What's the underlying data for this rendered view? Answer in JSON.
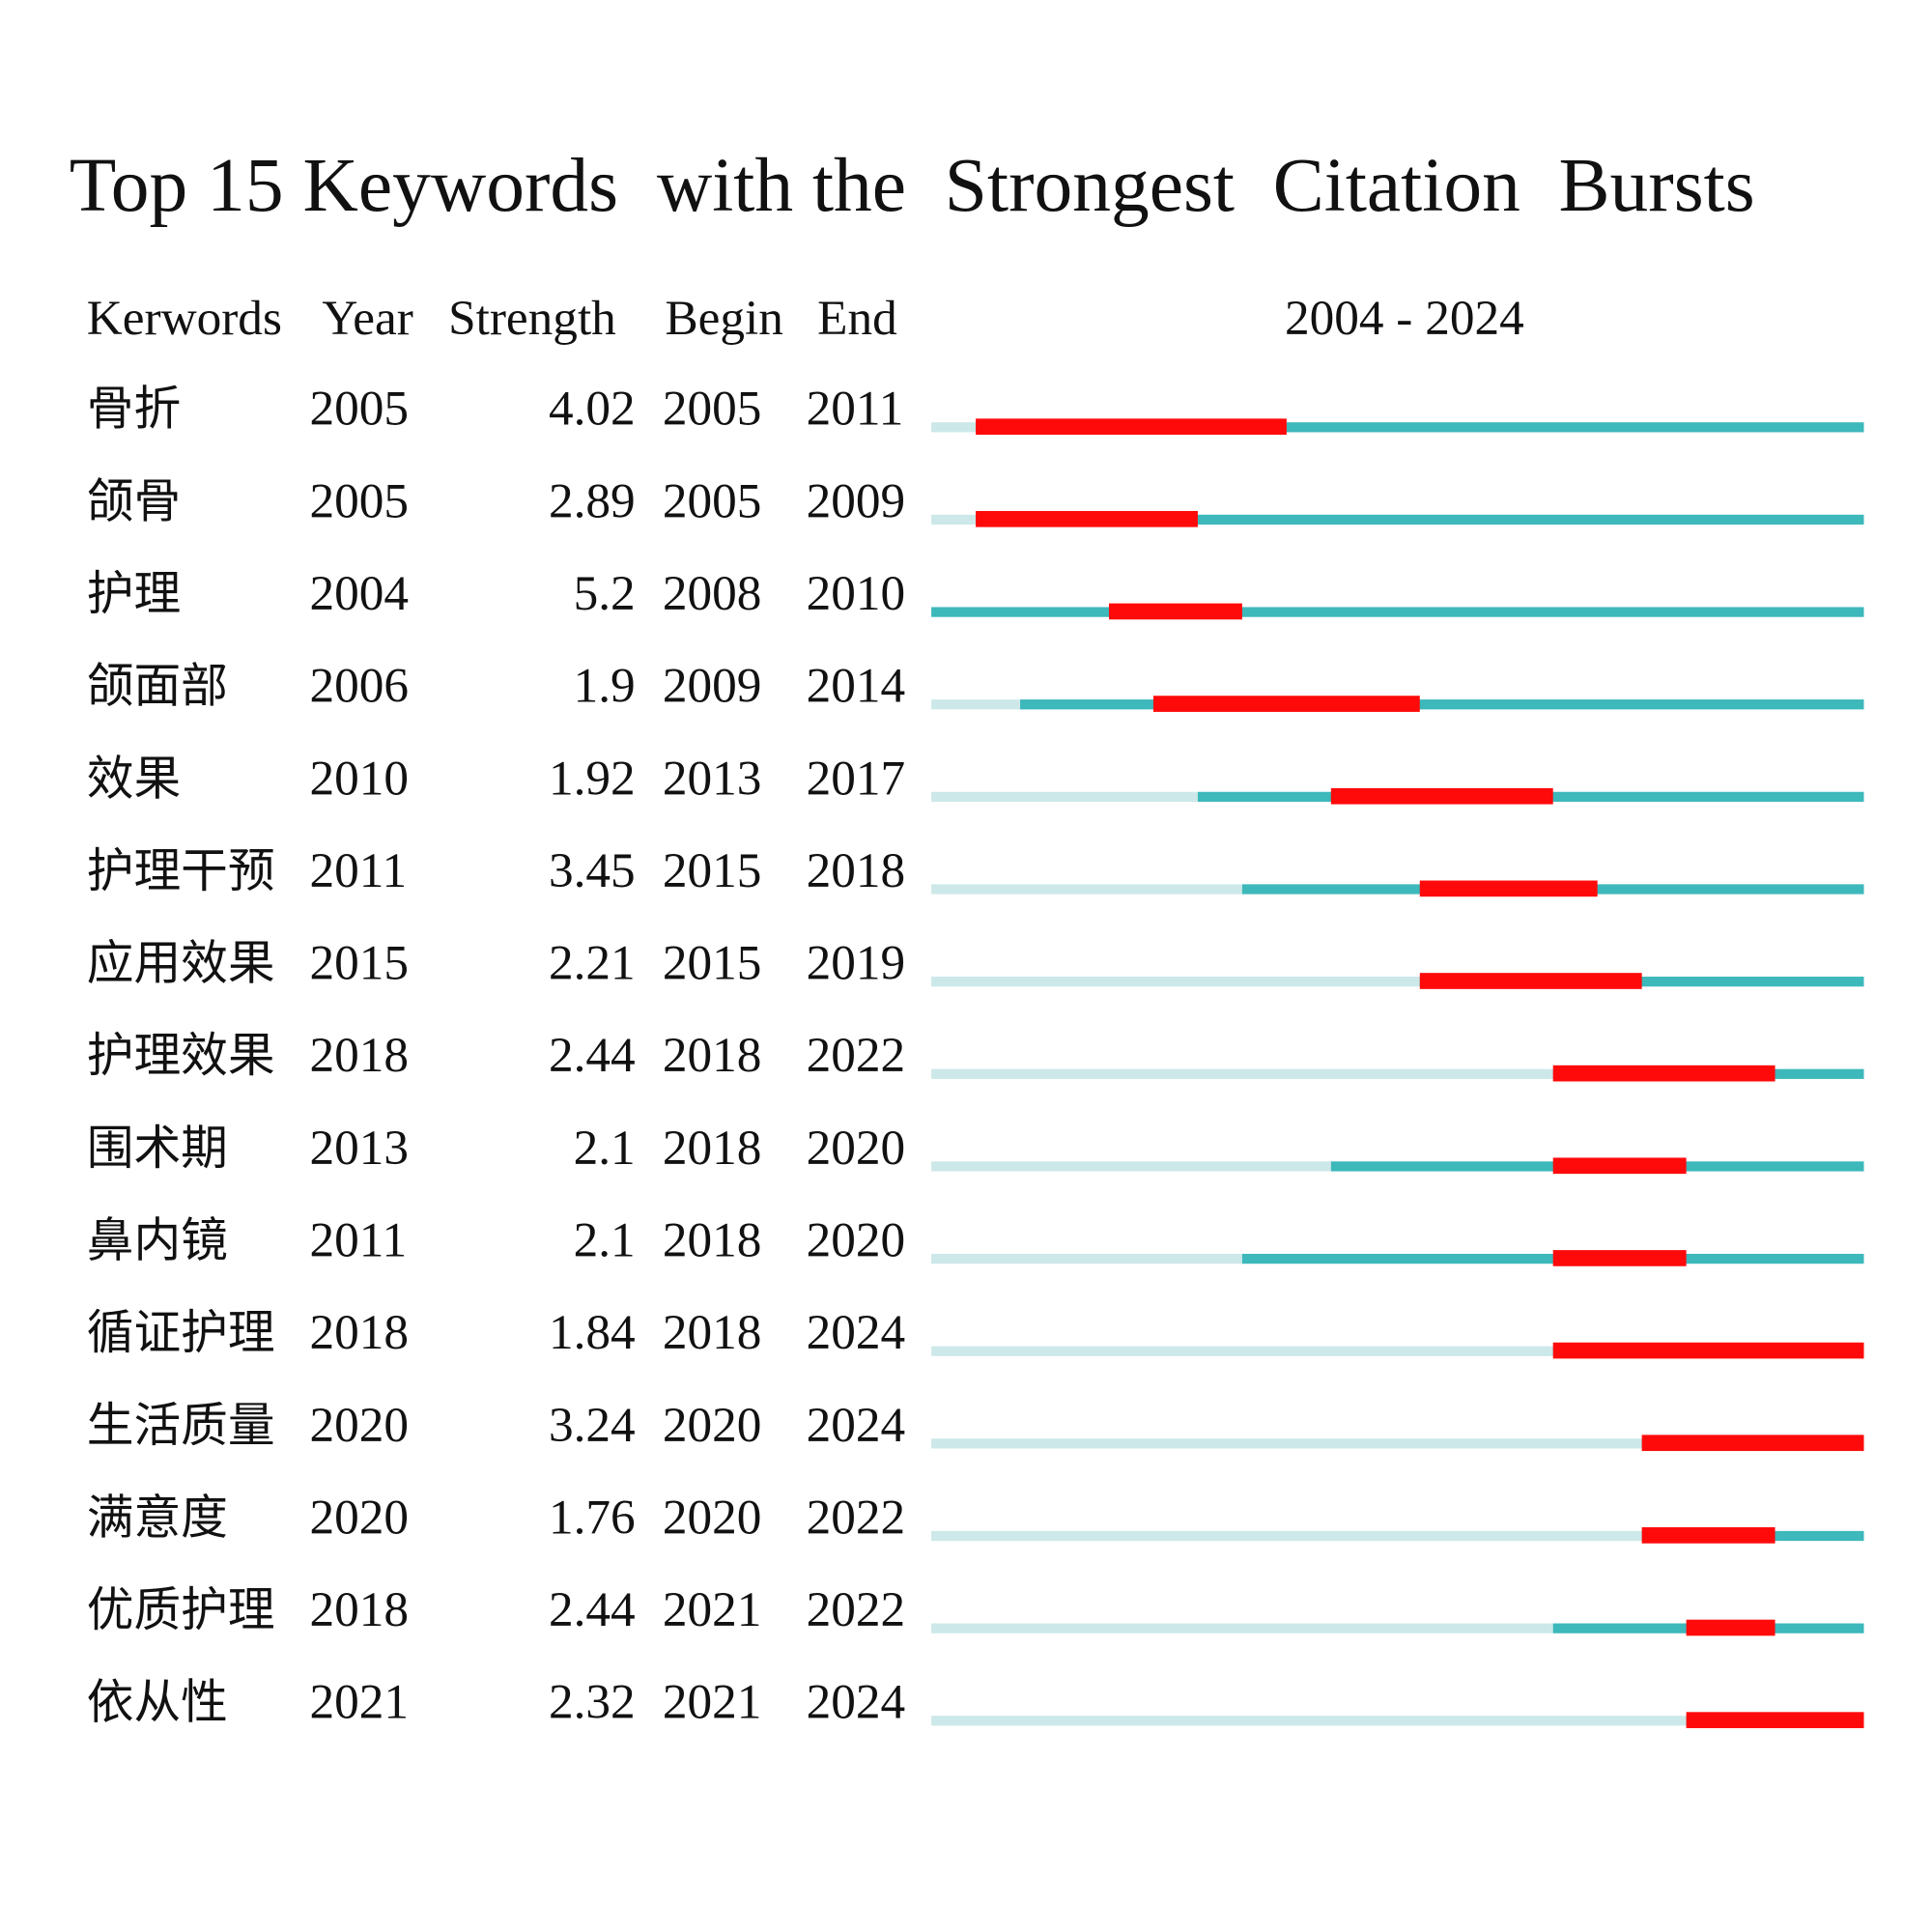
{
  "chart_data": {
    "type": "burst",
    "title": "Top 15 Keywords  with the  Strongest  Citation  Bursts",
    "header": [
      "Kerwords",
      "Year",
      "Strength",
      "Begin",
      "End"
    ],
    "range_label": "2004 - 2024",
    "xlim": [
      2004,
      2024
    ],
    "keywords": [
      "骨折",
      "颌骨",
      "护理",
      "颌面部",
      "效果",
      "护理干预",
      "应用效果",
      "护理效果",
      "围术期",
      "鼻内镜",
      "循证护理",
      "生活质量",
      "满意度",
      "优质护理",
      "依从性"
    ],
    "year": [
      2005,
      2005,
      2004,
      2006,
      2010,
      2011,
      2015,
      2018,
      2013,
      2011,
      2018,
      2020,
      2020,
      2018,
      2021
    ],
    "strength": [
      4.02,
      2.89,
      5.2,
      1.9,
      1.92,
      3.45,
      2.21,
      2.44,
      2.1,
      2.1,
      1.84,
      3.24,
      1.76,
      2.44,
      2.32
    ],
    "begin": [
      2005,
      2005,
      2008,
      2009,
      2013,
      2015,
      2015,
      2018,
      2018,
      2018,
      2018,
      2020,
      2020,
      2021,
      2021
    ],
    "end": [
      2011,
      2009,
      2010,
      2014,
      2017,
      2018,
      2019,
      2022,
      2020,
      2020,
      2024,
      2024,
      2022,
      2022,
      2024
    ],
    "colors": {
      "burst": "#ff0a0a",
      "active": "#3db8bb",
      "inactive": "#cde8e8"
    }
  }
}
